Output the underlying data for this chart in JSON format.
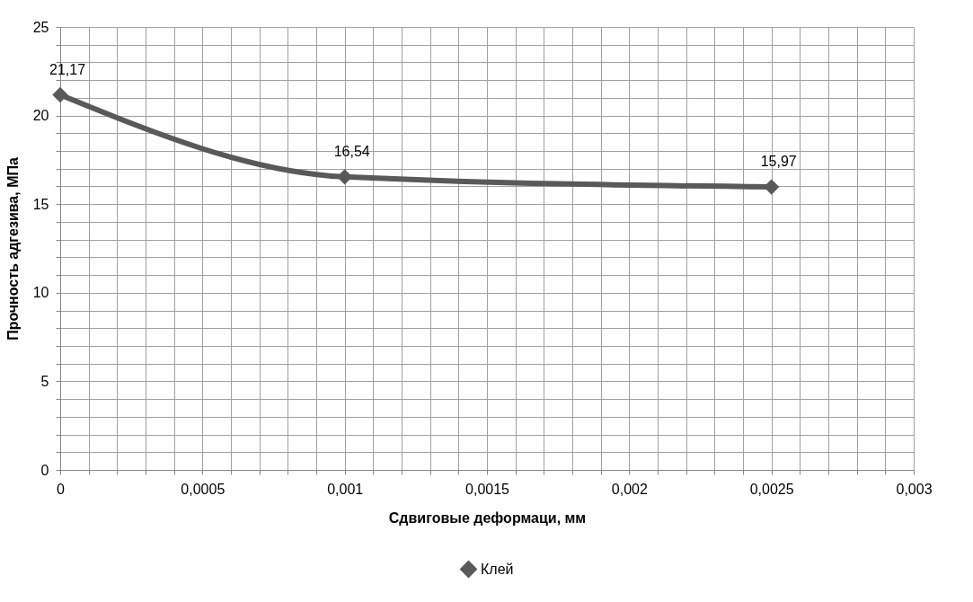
{
  "chart_data": {
    "type": "line",
    "xlabel": "Сдвиговые деформаци, мм",
    "ylabel": "Прочность адгезива, МПа",
    "x": [
      0,
      0.001,
      0.0025
    ],
    "series": [
      {
        "name": "Клей",
        "color": "#595959",
        "values": [
          21.17,
          16.54,
          15.97
        ],
        "value_labels": [
          "21,17",
          "16,54",
          "15,97"
        ]
      }
    ],
    "xlim": [
      0,
      0.003
    ],
    "xticks": [
      0,
      {
        "value": 0.0005,
        "label": "0,0005"
      },
      {
        "value": 0.001,
        "label": "0,001"
      },
      {
        "value": 0.0015,
        "label": "0,0015"
      },
      {
        "value": 0.002,
        "label": "0,002"
      },
      {
        "value": 0.0025,
        "label": "0,0025"
      },
      {
        "value": 0.003,
        "label": "0,003"
      }
    ],
    "ylim": [
      0,
      25
    ],
    "yticks": [
      0,
      5,
      10,
      15,
      20,
      25
    ],
    "grid": true,
    "legend": "bottom",
    "marker": "diamond",
    "line_style": "solid"
  }
}
